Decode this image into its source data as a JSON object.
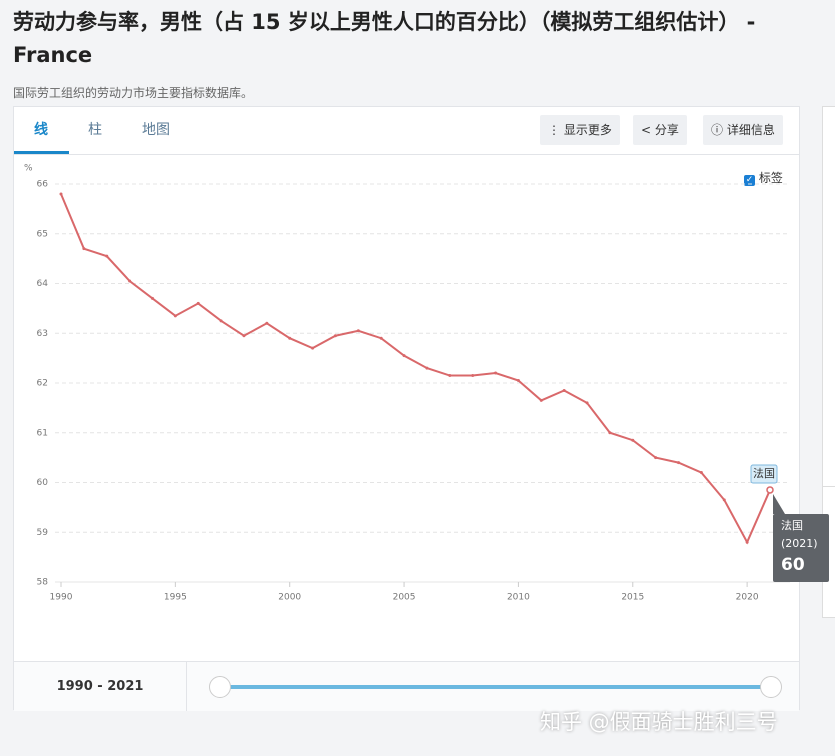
{
  "header": {
    "title": "劳动力参与率，男性（占 15 岁以上男性人口的百分比）（模拟劳工组织估计） - France",
    "source": "国际劳工组织的劳动力市场主要指标数据库。"
  },
  "tabs": [
    "线",
    "柱",
    "地图"
  ],
  "buttons": [
    "显示更多",
    "分享",
    "详细信息"
  ],
  "checkbox_label": "标签",
  "range_label": "1990 - 2021",
  "watermark": "知乎 @假面骑士胜利三号",
  "chart_data": {
    "type": "line",
    "y_unit": "%",
    "x": [
      1990,
      1991,
      1992,
      1993,
      1994,
      1995,
      1996,
      1997,
      1998,
      1999,
      2000,
      2001,
      2002,
      2003,
      2004,
      2005,
      2006,
      2007,
      2008,
      2009,
      2010,
      2011,
      2012,
      2013,
      2014,
      2015,
      2016,
      2017,
      2018,
      2019,
      2020,
      2021
    ],
    "series": [
      {
        "name": "法国",
        "color": "#d9686a",
        "values": [
          65.8,
          64.7,
          64.55,
          64.05,
          63.7,
          63.35,
          63.6,
          63.25,
          62.95,
          63.2,
          62.9,
          62.7,
          62.95,
          63.05,
          62.9,
          62.55,
          62.3,
          62.15,
          62.15,
          62.2,
          62.05,
          61.65,
          61.85,
          61.6,
          61.0,
          60.85,
          60.5,
          60.4,
          60.2,
          59.65,
          58.8,
          59.85
        ]
      }
    ],
    "xlim": [
      1990,
      2021
    ],
    "xticks": [
      1990,
      1995,
      2000,
      2005,
      2010,
      2015,
      2020
    ],
    "ylim": [
      58,
      66
    ],
    "yticks": [
      58,
      59,
      60,
      61,
      62,
      63,
      64,
      65,
      66
    ],
    "grid": true,
    "tooltip": {
      "name": "法国",
      "x_label": "(2021)",
      "value_label": "60"
    }
  }
}
